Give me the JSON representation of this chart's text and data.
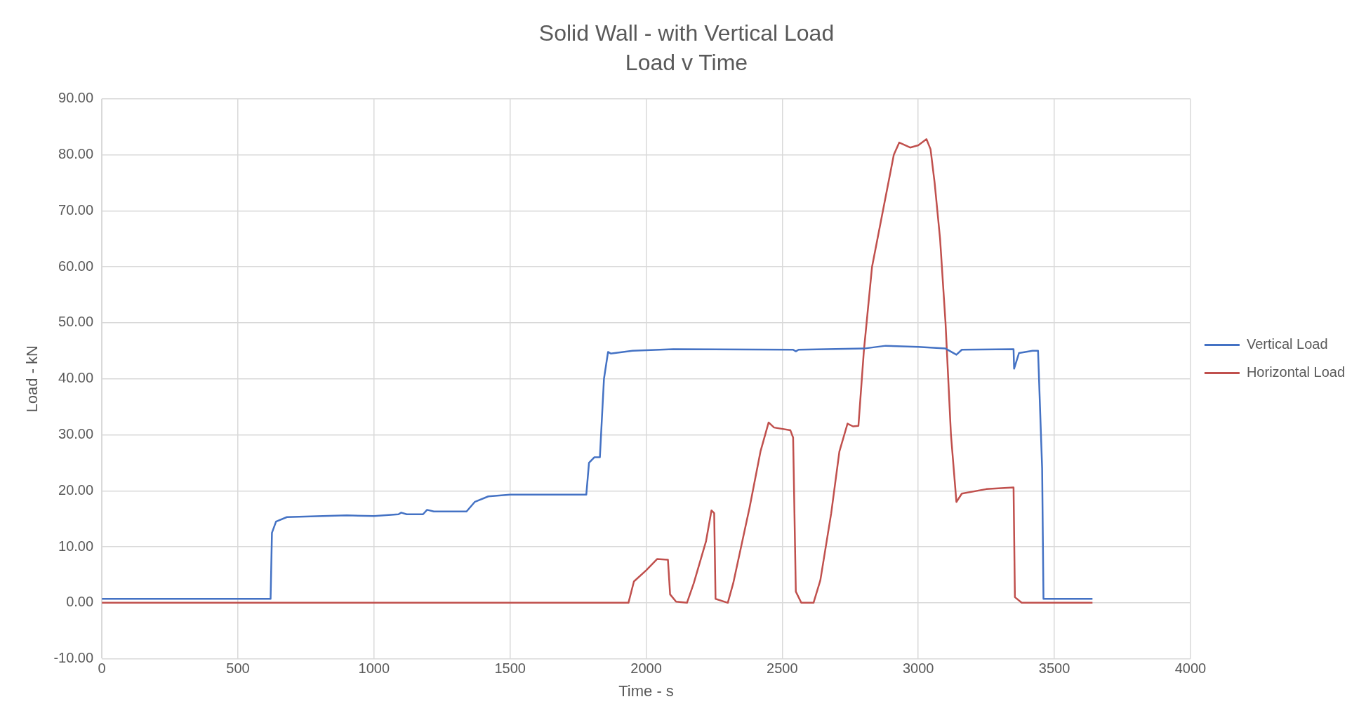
{
  "chart_data": {
    "type": "line",
    "title": "Solid Wall - with Vertical Load",
    "subtitle": "Load v Time",
    "xlabel": "Time - s",
    "ylabel": "Load - kN",
    "xlim": [
      0,
      4000
    ],
    "xticks": [
      0,
      500,
      1000,
      1500,
      2000,
      2500,
      3000,
      3500,
      4000
    ],
    "ylim": [
      -10,
      90
    ],
    "yticks": [
      {
        "value": -10,
        "label": "-10.00"
      },
      {
        "value": 0,
        "label": "0.00"
      },
      {
        "value": 10,
        "label": "10.00"
      },
      {
        "value": 20,
        "label": "20.00"
      },
      {
        "value": 30,
        "label": "30.00"
      },
      {
        "value": 40,
        "label": "40.00"
      },
      {
        "value": 50,
        "label": "50.00"
      },
      {
        "value": 60,
        "label": "60.00"
      },
      {
        "value": 70,
        "label": "70.00"
      },
      {
        "value": 80,
        "label": "80.00"
      },
      {
        "value": 90,
        "label": "90.00"
      }
    ],
    "grid": true,
    "legend": "right",
    "marker": "none",
    "line_style": "solid",
    "series": [
      {
        "name": "Vertical Load",
        "color": "#4472c4",
        "x": [
          0,
          620,
          625,
          640,
          680,
          900,
          1000,
          1090,
          1100,
          1120,
          1180,
          1195,
          1220,
          1340,
          1370,
          1420,
          1500,
          1780,
          1790,
          1810,
          1830,
          1845,
          1860,
          1870,
          1950,
          2100,
          2540,
          2550,
          2560,
          2800,
          2880,
          3000,
          3100,
          3140,
          3160,
          3350,
          3352,
          3370,
          3420,
          3440,
          3455,
          3460,
          3640
        ],
        "values": [
          0.7,
          0.7,
          12.5,
          14.5,
          15.3,
          15.6,
          15.5,
          15.8,
          16.1,
          15.8,
          15.8,
          16.6,
          16.3,
          16.3,
          18.0,
          19.0,
          19.3,
          19.3,
          25,
          26,
          26,
          40,
          44.8,
          44.5,
          45,
          45.3,
          45.2,
          44.9,
          45.2,
          45.4,
          45.9,
          45.7,
          45.4,
          44.3,
          45.2,
          45.3,
          41.8,
          44.6,
          45,
          45,
          24,
          0.7,
          0.7
        ]
      },
      {
        "name": "Horizontal Load",
        "color": "#c0504d",
        "x": [
          0,
          1935,
          1955,
          2000,
          2040,
          2080,
          2088,
          2110,
          2150,
          2175,
          2220,
          2240,
          2250,
          2255,
          2300,
          2320,
          2380,
          2420,
          2450,
          2470,
          2530,
          2540,
          2550,
          2570,
          2615,
          2640,
          2680,
          2710,
          2740,
          2760,
          2780,
          2800,
          2830,
          2870,
          2910,
          2930,
          2970,
          3000,
          3030,
          3045,
          3060,
          3080,
          3100,
          3120,
          3140,
          3160,
          3250,
          3350,
          3355,
          3380,
          3640
        ],
        "values": [
          0,
          0,
          3.8,
          5.8,
          7.8,
          7.7,
          1.5,
          0.2,
          0,
          3.5,
          11,
          16.5,
          16,
          0.7,
          0,
          3.5,
          17,
          27,
          32.2,
          31.3,
          30.8,
          29.5,
          2,
          0,
          0,
          4,
          16,
          27,
          32,
          31.5,
          31.6,
          45,
          60,
          70,
          80,
          82.2,
          81.3,
          81.7,
          82.8,
          81,
          75,
          65,
          50,
          30,
          18,
          19.5,
          20.3,
          20.6,
          1,
          0,
          0
        ]
      }
    ]
  }
}
